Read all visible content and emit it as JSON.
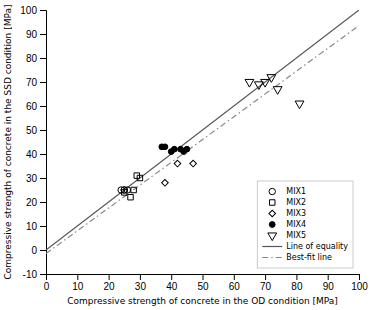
{
  "chart_data": {
    "type": "scatter",
    "xlabel": "Compressive strength of concrete in the OD condition [MPa]",
    "ylabel": "Compressive strength of concrete in the SSD condition [MPa]",
    "xlim": [
      0,
      100
    ],
    "ylim": [
      -10,
      100
    ],
    "xticks": [
      0,
      10,
      20,
      30,
      40,
      50,
      60,
      70,
      80,
      90,
      100
    ],
    "yticks": [
      -10,
      0,
      10,
      20,
      30,
      40,
      50,
      60,
      70,
      80,
      90,
      100
    ],
    "grid": false,
    "legend": "lower right",
    "series": [
      {
        "name": "MIX1",
        "type": "scatter",
        "marker": "circle-open",
        "color": "#000000",
        "x": [
          24,
          25,
          25,
          26
        ],
        "values": [
          25,
          25,
          25,
          25
        ]
      },
      {
        "name": "MIX2",
        "type": "scatter",
        "marker": "square-open",
        "color": "#000000",
        "x": [
          25,
          27,
          28,
          29,
          30
        ],
        "values": [
          24,
          22,
          25,
          31,
          30
        ]
      },
      {
        "name": "MIX3",
        "type": "scatter",
        "marker": "diamond-open",
        "color": "#000000",
        "x": [
          38,
          42,
          47
        ],
        "values": [
          28,
          36,
          36
        ]
      },
      {
        "name": "MIX4",
        "type": "scatter",
        "marker": "circle",
        "color": "#000000",
        "x": [
          37,
          38,
          40,
          41,
          43,
          44,
          45
        ],
        "values": [
          43,
          43,
          41,
          42,
          42,
          41,
          42
        ]
      },
      {
        "name": "MIX5",
        "type": "scatter",
        "marker": "triangle-down-open",
        "color": "#000000",
        "x": [
          65,
          68,
          70,
          72,
          74,
          81
        ],
        "values": [
          70,
          69,
          70,
          72,
          67,
          61
        ]
      },
      {
        "name": "Line of equality",
        "type": "line",
        "line_style": "solid",
        "color": "#555555",
        "x": [
          0,
          100
        ],
        "values": [
          0,
          100
        ]
      },
      {
        "name": "Best-fit line",
        "type": "line",
        "line_style": "dashdot",
        "color": "#888888",
        "x": [
          0,
          100
        ],
        "values": [
          -1.5,
          93.5
        ]
      }
    ]
  }
}
